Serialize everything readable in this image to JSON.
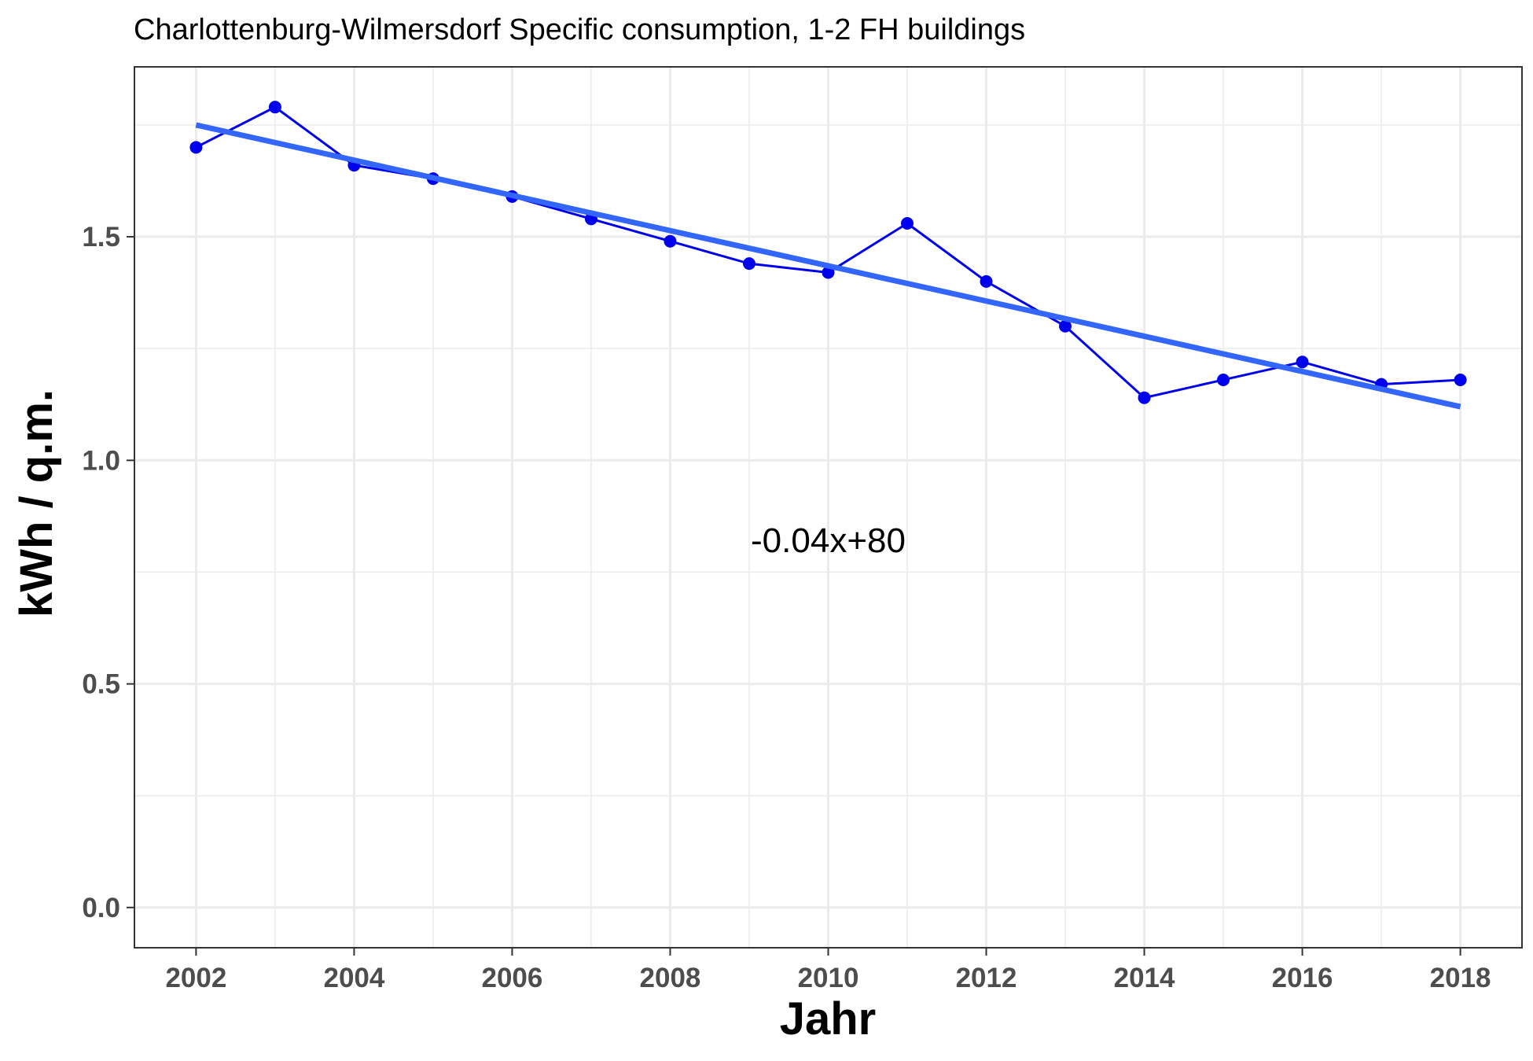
{
  "chart_data": {
    "type": "line",
    "title": "Charlottenburg-Wilmersdorf Specific consumption, 1-2 FH buildings",
    "xlabel": "Jahr",
    "ylabel": "kWh / q.m.",
    "xlim": [
      2001.22,
      2018.78
    ],
    "ylim": [
      -0.09,
      1.88
    ],
    "x_ticks": [
      2002,
      2004,
      2006,
      2008,
      2010,
      2012,
      2014,
      2016,
      2018
    ],
    "y_ticks": [
      0.0,
      0.5,
      1.0,
      1.5
    ],
    "y_tick_labels": [
      "0.0",
      "0.5",
      "1.0",
      "1.5"
    ],
    "grid": true,
    "series": [
      {
        "type": "line+points",
        "color": "#0000ee",
        "x": [
          2002,
          2003,
          2004,
          2005,
          2006,
          2007,
          2008,
          2009,
          2010,
          2011,
          2012,
          2013,
          2014,
          2015,
          2016,
          2017,
          2018
        ],
        "values": [
          1.7,
          1.79,
          1.66,
          1.63,
          1.59,
          1.54,
          1.49,
          1.44,
          1.42,
          1.53,
          1.4,
          1.3,
          1.14,
          1.18,
          1.22,
          1.17,
          1.18
        ]
      },
      {
        "type": "trend",
        "color": "#3366ff",
        "x": [
          2002,
          2018
        ],
        "values": [
          1.75,
          1.12
        ]
      }
    ],
    "annotation": {
      "text": "-0.04x+80",
      "x": 2010,
      "y": 0.795
    }
  }
}
